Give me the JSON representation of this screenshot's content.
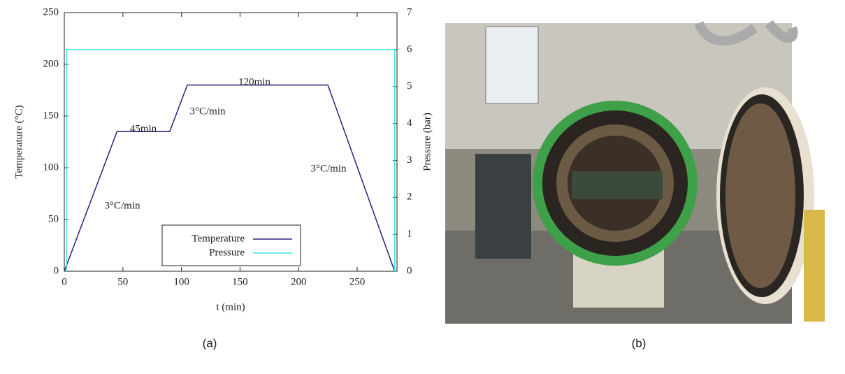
{
  "chart_data": {
    "type": "line",
    "xlabel": "t (min)",
    "ylabel": "Temperature (°C)",
    "y2label": "Pressure (bar)",
    "xlim": [
      0,
      284
    ],
    "xticks": [
      0,
      50,
      100,
      150,
      200,
      250
    ],
    "ylim": [
      0,
      250
    ],
    "yticks": [
      0,
      50,
      100,
      150,
      200,
      250
    ],
    "y2lim": [
      0,
      7
    ],
    "y2ticks": [
      0,
      1,
      2,
      3,
      4,
      5,
      6,
      7
    ],
    "legend": "lower center",
    "series": [
      {
        "name": "Temperature",
        "color": "#23237e",
        "x": [
          0,
          45,
          90,
          105,
          225,
          282
        ],
        "values": [
          0,
          135,
          135,
          180,
          180,
          0
        ]
      },
      {
        "name": "Pressure",
        "color": "#3fe4e4",
        "axis": "y2",
        "x": [
          2,
          2,
          282,
          282
        ],
        "values": [
          0,
          6,
          6,
          0
        ]
      }
    ],
    "annotations": [
      "3°C/min",
      "45min",
      "3°C/min",
      "120min",
      "3°C/min"
    ]
  },
  "captions": [
    "(a)",
    "(b)"
  ]
}
